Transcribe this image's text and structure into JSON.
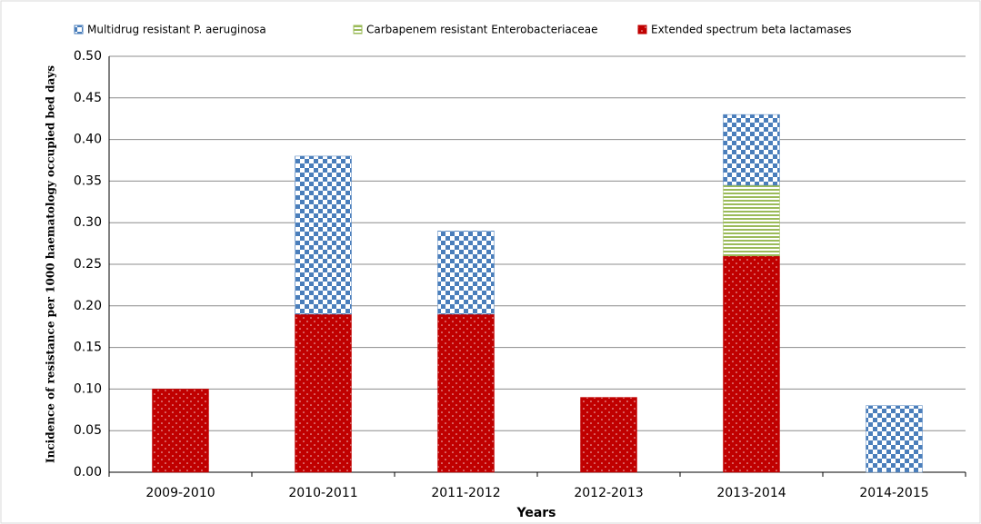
{
  "chart_data": {
    "type": "stacked_bar",
    "x_label": "Years",
    "y_label": "Incidence of resistance per 1000 haematology occupied bed days",
    "categories": [
      "2009-2010",
      "2010-2011",
      "2011-2012",
      "2012-2013",
      "2013-2014",
      "2014-2015"
    ],
    "series": [
      {
        "name": "Multidrug resistant P. aeruginosa",
        "color": "#4a7ebb",
        "values": [
          0,
          0.19,
          0.1,
          0,
          0.085,
          0.08
        ]
      },
      {
        "name": "Carbapenem resistant Enterobacteriaceae",
        "color": "#9bbb59",
        "values": [
          0,
          0,
          0,
          0,
          0.085,
          0
        ]
      },
      {
        "name": "Extended spectrum beta lactamases",
        "color": "#c00000",
        "values": [
          0.1,
          0.19,
          0.19,
          0.09,
          0.26,
          0
        ]
      }
    ],
    "ylim": [
      0,
      0.5
    ],
    "yticks": [
      {
        "value": 0,
        "label": "0.00"
      },
      {
        "value": 0.05,
        "label": "0.05"
      },
      {
        "value": 0.1,
        "label": "0.10"
      },
      {
        "value": 0.15,
        "label": "0.15"
      },
      {
        "value": 0.2,
        "label": "0.20"
      },
      {
        "value": 0.25,
        "label": "0.25"
      },
      {
        "value": 0.3,
        "label": "0.30"
      },
      {
        "value": 0.35,
        "label": "0.35"
      },
      {
        "value": 0.4,
        "label": "0.40"
      },
      {
        "value": 0.45,
        "label": "0.45"
      },
      {
        "value": 0.5,
        "label": "0.50"
      }
    ],
    "grid": true,
    "legend": "top"
  }
}
